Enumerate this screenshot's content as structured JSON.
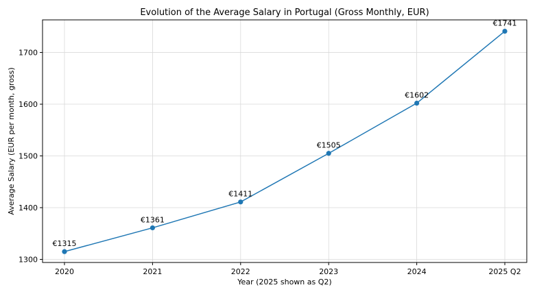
{
  "chart_data": {
    "type": "line",
    "title": "Evolution of the Average Salary in Portugal (Gross Monthly, EUR)",
    "xlabel": "Year (2025 shown as Q2)",
    "ylabel": "Average Salary (EUR per month, gross)",
    "categories": [
      "2020",
      "2021",
      "2022",
      "2023",
      "2024",
      "2025 Q2"
    ],
    "values": [
      1315,
      1361,
      1411,
      1505,
      1602,
      1741
    ],
    "data_labels": [
      "€1315",
      "€1361",
      "€1411",
      "€1505",
      "€1602",
      "€1741"
    ],
    "ylim": [
      1294,
      1763
    ],
    "yticks": [
      1300,
      1400,
      1500,
      1600,
      1700
    ],
    "grid": true,
    "series_color": "#1f77b4"
  }
}
